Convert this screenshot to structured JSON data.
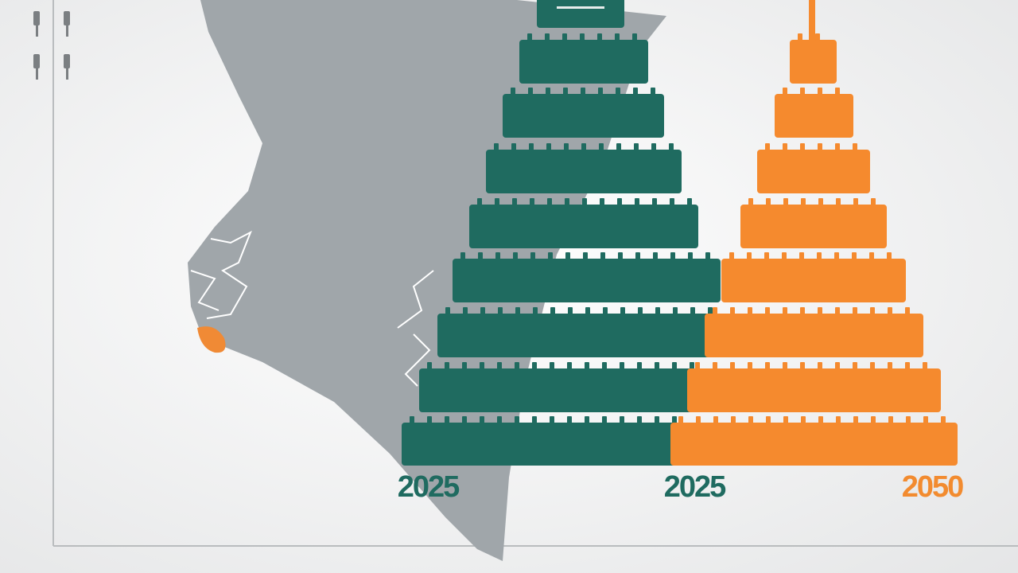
{
  "labels": {
    "left": "2025",
    "middle": "2025",
    "right": "2050"
  }
}
